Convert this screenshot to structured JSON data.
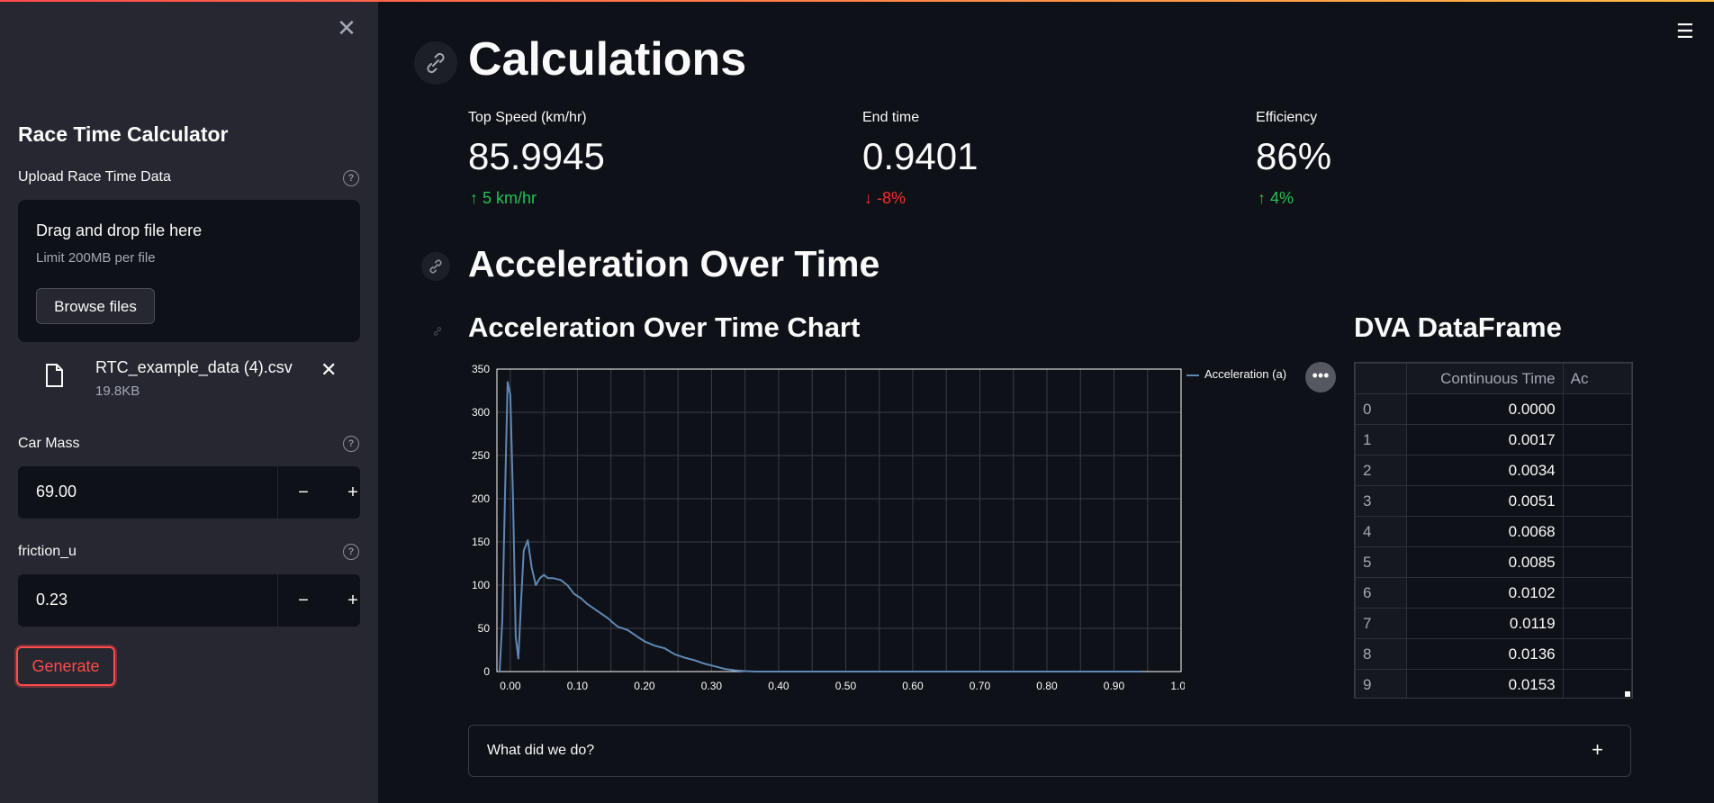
{
  "sidebar": {
    "title": "Race Time Calculator",
    "upload_label": "Upload Race Time Data",
    "dropzone_title": "Drag and drop file here",
    "dropzone_limit": "Limit 200MB per file",
    "browse_label": "Browse files",
    "file_name": "RTC_example_data (4).csv",
    "file_size": "19.8KB",
    "car_mass_label": "Car Mass",
    "car_mass_value": "69.00",
    "friction_label": "friction_u",
    "friction_value": "0.23",
    "generate_label": "Generate"
  },
  "main": {
    "title": "Calculations",
    "metrics": [
      {
        "label": "Top Speed (km/hr)",
        "value": "85.9945",
        "delta": "5 km/hr",
        "direction": "up"
      },
      {
        "label": "End time",
        "value": "0.9401",
        "delta": "-8%",
        "direction": "down"
      },
      {
        "label": "Efficiency",
        "value": "86%",
        "delta": "4%",
        "direction": "up"
      }
    ],
    "section_title": "Acceleration Over Time",
    "chart_title": "Acceleration Over Time Chart",
    "df_title": "DVA DataFrame",
    "df": {
      "columns": [
        "",
        "Continuous Time",
        "Ac"
      ],
      "rows": [
        [
          "0",
          "0.0000"
        ],
        [
          "1",
          "0.0017"
        ],
        [
          "2",
          "0.0034"
        ],
        [
          "3",
          "0.0051"
        ],
        [
          "4",
          "0.0068"
        ],
        [
          "5",
          "0.0085"
        ],
        [
          "6",
          "0.0102"
        ],
        [
          "7",
          "0.0119"
        ],
        [
          "8",
          "0.0136"
        ],
        [
          "9",
          "0.0153"
        ]
      ]
    },
    "expander_label": "What did we do?"
  },
  "colors": {
    "accent": "#ff4b4b",
    "positive": "#21c354",
    "negative": "#ff2b2b",
    "series": "#5f88b5"
  },
  "chart_data": {
    "type": "line",
    "title": "Acceleration Over Time Chart",
    "xlabel": "",
    "ylabel": "",
    "xlim": [
      -0.02,
      1.0
    ],
    "ylim": [
      0,
      350
    ],
    "x_ticks": [
      "0.00",
      "0.10",
      "0.20",
      "0.30",
      "0.40",
      "0.50",
      "0.60",
      "0.70",
      "0.80",
      "0.90",
      "1.00"
    ],
    "y_ticks": [
      "0",
      "50",
      "100",
      "150",
      "200",
      "250",
      "300",
      "350"
    ],
    "grid": true,
    "legend": "top-right",
    "series": [
      {
        "name": "Acceleration (a)",
        "x": [
          -0.016,
          -0.012,
          -0.008,
          -0.004,
          0.0,
          0.004,
          0.008,
          0.012,
          0.016,
          0.02,
          0.026,
          0.032,
          0.038,
          0.044,
          0.05,
          0.056,
          0.064,
          0.075,
          0.085,
          0.095,
          0.105,
          0.115,
          0.13,
          0.145,
          0.16,
          0.175,
          0.19,
          0.2,
          0.215,
          0.23,
          0.245,
          0.26,
          0.275,
          0.29,
          0.305,
          0.32,
          0.335,
          0.35,
          0.365,
          0.38,
          0.4,
          0.45,
          0.5,
          0.55,
          0.6,
          0.7,
          0.8,
          0.9,
          0.94
        ],
        "y": [
          0,
          60,
          200,
          335,
          320,
          200,
          40,
          15,
          80,
          140,
          152,
          120,
          100,
          108,
          112,
          108,
          108,
          106,
          100,
          90,
          85,
          78,
          70,
          62,
          52,
          48,
          40,
          35,
          30,
          27,
          20,
          16,
          13,
          9,
          6,
          3,
          1.5,
          0.5,
          0,
          0,
          0,
          0,
          0,
          0,
          0,
          0,
          0,
          0,
          0
        ]
      }
    ]
  }
}
